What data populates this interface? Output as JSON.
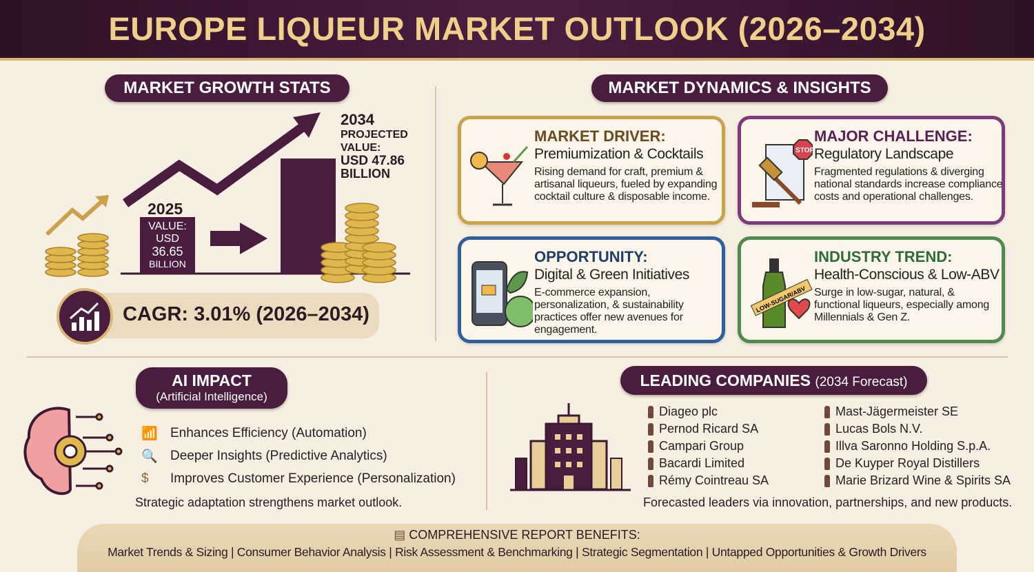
{
  "title": "EUROPE LIQUEUR MARKET OUTLOOK (2026–2034)",
  "growth": {
    "heading": "MARKET GROWTH STATS",
    "y2025": {
      "year": "2025",
      "label": "VALUE:",
      "currency": "USD",
      "value": "36.65",
      "unit": "BILLION"
    },
    "y2034": {
      "year": "2034",
      "line1": "PROJECTED",
      "line2": "VALUE:",
      "line3": "USD 47.86",
      "line4": "BILLION"
    },
    "cagr": "CAGR: 3.01% (2026–2034)"
  },
  "dynamics": {
    "heading": "MARKET DYNAMICS & INSIGHTS",
    "cards": [
      {
        "heading": "MARKET DRIVER:",
        "subtitle": "Premiumization & Cocktails",
        "text": "Rising demand for craft, premium & artisanal liqueurs, fueled by expanding cocktail culture & disposable income.",
        "color": "#c9a24a",
        "head_color": "#6b4a1f",
        "icon": "cocktail-icon"
      },
      {
        "heading": "MAJOR CHALLENGE:",
        "subtitle": "Regulatory Landscape",
        "text": "Fragmented regulations & diverging national standards increase compliance costs and operational challenges.",
        "color": "#7b3a7a",
        "head_color": "#5a1f55",
        "icon": "gavel-stop-icon",
        "badge": "STOP"
      },
      {
        "heading": "OPPORTUNITY:",
        "subtitle": "Digital & Green Initiatives",
        "text": "E-commerce expansion, personalization, & sustainability practices offer new avenues for engagement.",
        "color": "#2f5f9e",
        "head_color": "#1f3f6b",
        "icon": "phone-cart-recycle-icon"
      },
      {
        "heading": "INDUSTRY TREND:",
        "subtitle": "Health-Conscious & Low-ABV",
        "text": "Surge in low-sugar, natural, & functional liqueurs, especially among Millennials & Gen Z.",
        "color": "#4f8a4f",
        "head_color": "#2f6a3a",
        "icon": "bottle-heart-icon",
        "tag": "LOW-SUGAR/ABV"
      }
    ]
  },
  "ai": {
    "heading": "AI IMPACT",
    "subheading": "(Artificial Intelligence)",
    "items": [
      {
        "text": "Enhances Efficiency (Automation)",
        "icon": "bar-chart-icon"
      },
      {
        "text": "Deeper Insights (Predictive Analytics)",
        "icon": "magnifier-icon"
      },
      {
        "text": "Improves Customer Experience (Personalization)",
        "icon": "hand-coin-icon"
      }
    ],
    "footnote": "Strategic adaptation strengthens market outlook."
  },
  "companies": {
    "heading": "LEADING COMPANIES",
    "heading_note": "(2034 Forecast)",
    "col1": [
      "Diageo plc",
      "Pernod Ricard SA",
      "Campari Group",
      "Bacardi Limited",
      "Rémy Cointreau SA"
    ],
    "col2": [
      "Mast-Jägermeister SE",
      "Lucas Bols N.V.",
      "Illva Saronno Holding S.p.A.",
      "De Kuyper Royal Distillers",
      "Marie Brizard Wine & Spirits SA"
    ],
    "footnote": "Forecasted leaders via innovation, partnerships, and new products."
  },
  "footer": {
    "heading": "COMPREHENSIVE REPORT BENEFITS:",
    "items": [
      "Market Trends & Sizing",
      "Consumer Behavior Analysis",
      "Risk Assessment & Benchmarking",
      "Strategic Segmentation",
      "Untapped Opportunities & Growth Drivers"
    ]
  }
}
